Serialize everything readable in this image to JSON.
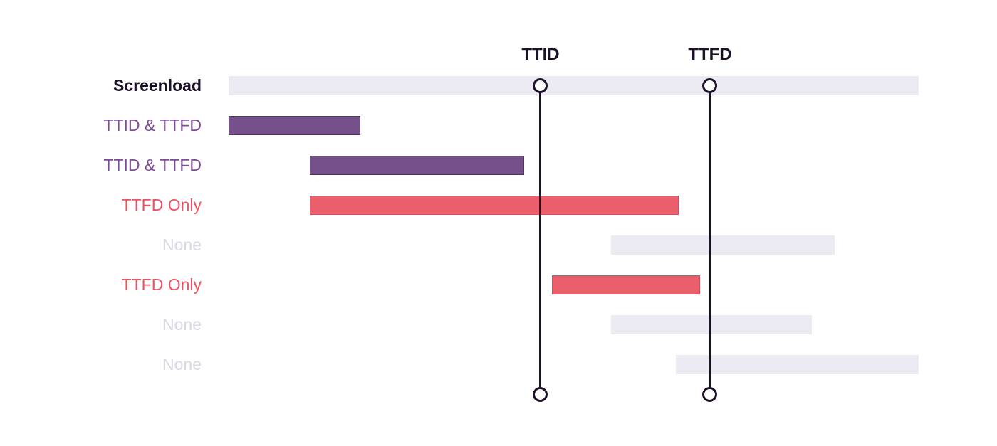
{
  "diagram": {
    "description_rows": "Timeline diagram of a Screenload trace showing span attribution relative to TTID and TTFD markers",
    "rows": [
      {
        "label": "Screenload",
        "role": "screenload",
        "start_pct": 0,
        "end_pct": 100
      },
      {
        "label": "TTID & TTFD",
        "role": "both",
        "start_pct": 0,
        "end_pct": 19.09
      },
      {
        "label": "TTID & TTFD",
        "role": "both",
        "start_pct": 11.76,
        "end_pct": 42.83
      },
      {
        "label": "TTFD Only",
        "role": "ttfd_only",
        "start_pct": 11.76,
        "end_pct": 65.22
      },
      {
        "label": "None",
        "role": "none",
        "start_pct": 55.42,
        "end_pct": 87.82
      },
      {
        "label": "TTFD Only",
        "role": "ttfd_only",
        "start_pct": 46.85,
        "end_pct": 68.32
      },
      {
        "label": "None",
        "role": "none",
        "start_pct": 55.42,
        "end_pct": 84.52
      },
      {
        "label": "None",
        "role": "none",
        "start_pct": 64.81,
        "end_pct": 100
      }
    ],
    "markers": [
      {
        "label": "TTID",
        "pct": 45.2
      },
      {
        "label": "TTFD",
        "pct": 69.76
      }
    ]
  },
  "colors": {
    "background": "#ffffff",
    "dark": "#1d1127",
    "gray_bar": "#eceaf2",
    "purple_bar": "#76508a",
    "purple_border": "#5b2e70",
    "purple_label": "#7b4b96",
    "red_bar": "#ea5f6b",
    "red_border": "#d84b5b",
    "red_label": "#ee5361",
    "none_label": "#dad7e3"
  }
}
